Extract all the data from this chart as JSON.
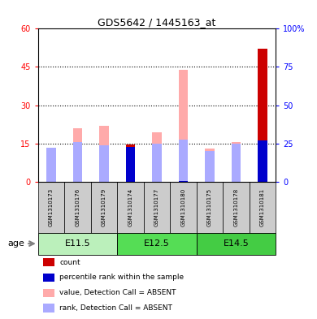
{
  "title": "GDS5642 / 1445163_at",
  "samples": [
    "GSM1310173",
    "GSM1310176",
    "GSM1310179",
    "GSM1310174",
    "GSM1310177",
    "GSM1310180",
    "GSM1310175",
    "GSM1310178",
    "GSM1310181"
  ],
  "value_absent": [
    13.0,
    21.0,
    22.0,
    0.0,
    19.5,
    44.0,
    13.0,
    15.5,
    0.0
  ],
  "rank_absent_pct": [
    22.0,
    26.0,
    24.0,
    0.0,
    25.0,
    27.5,
    20.0,
    25.0,
    0.0
  ],
  "count": [
    0.0,
    0.0,
    0.0,
    14.5,
    0.0,
    0.0,
    0.0,
    0.0,
    52.0
  ],
  "percentile_rank_pct": [
    0.0,
    0.0,
    0.0,
    22.5,
    0.0,
    0.5,
    0.0,
    0.0,
    27.0
  ],
  "ylim_left": [
    0,
    60
  ],
  "ylim_right": [
    0,
    100
  ],
  "yticks_left": [
    0,
    15,
    30,
    45,
    60
  ],
  "yticks_right": [
    0,
    25,
    50,
    75,
    100
  ],
  "color_count": "#cc0000",
  "color_percentile": "#0000cc",
  "color_value_absent": "#ffaaaa",
  "color_rank_absent": "#aaaaff",
  "bar_width": 0.35,
  "age_groups": [
    {
      "label": "E11.5",
      "start": 0,
      "end": 3,
      "color": "#bbf0bb"
    },
    {
      "label": "E12.5",
      "start": 3,
      "end": 6,
      "color": "#55dd55"
    },
    {
      "label": "E14.5",
      "start": 6,
      "end": 9,
      "color": "#44cc44"
    }
  ],
  "legend_items": [
    {
      "color": "#cc0000",
      "label": "count"
    },
    {
      "color": "#0000cc",
      "label": "percentile rank within the sample"
    },
    {
      "color": "#ffaaaa",
      "label": "value, Detection Call = ABSENT"
    },
    {
      "color": "#aaaaff",
      "label": "rank, Detection Call = ABSENT"
    }
  ]
}
